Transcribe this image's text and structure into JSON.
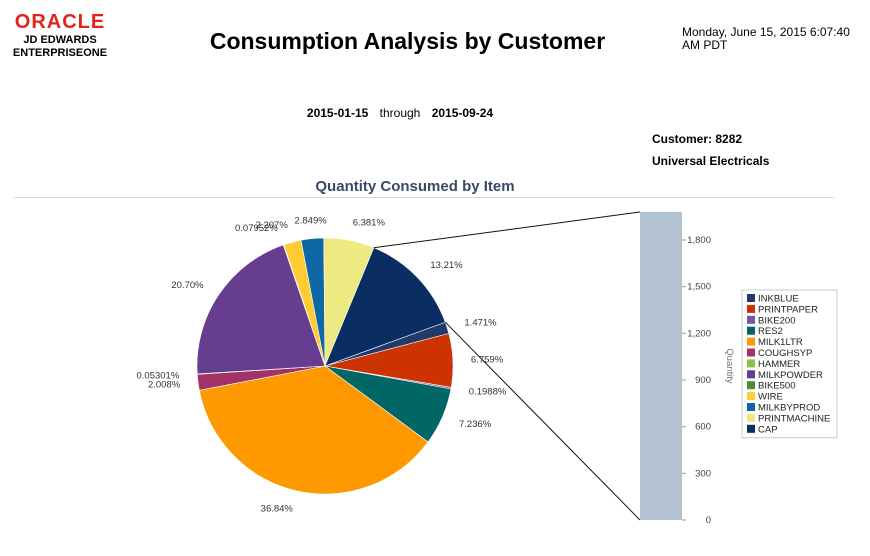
{
  "brand": {
    "oracle": "ORACLE",
    "line1": "JD EDWARDS",
    "line2": "ENTERPRISEONE",
    "logo_color": "#e3231b"
  },
  "report": {
    "title": "Consumption Analysis by Customer",
    "timestamp_line1": "Monday, June 15, 2015 6:07:40",
    "timestamp_line2": "AM PDT",
    "date_from": "2015-01-15",
    "through_label": "through",
    "date_to": "2015-09-24",
    "customer_label": "Customer:",
    "customer_number": "8282",
    "customer_name": "Universal Electricals"
  },
  "chart_data": {
    "type": "pie",
    "title": "Quantity Consumed by Item",
    "slices": [
      {
        "item": "INKBLUE",
        "percent": 1.471,
        "label": "1.471%",
        "color": "#1f3a6b"
      },
      {
        "item": "PRINTPAPER",
        "percent": 6.759,
        "label": "6.759%",
        "color": "#cc3300"
      },
      {
        "item": "BIKE200",
        "percent": 0.1988,
        "label": "0.1988%",
        "color": "#6a5aa8"
      },
      {
        "item": "RES2",
        "percent": 7.236,
        "label": "7.236%",
        "color": "#006666"
      },
      {
        "item": "MILK1LTR",
        "percent": 36.84,
        "label": "36.84%",
        "color": "#ff9900"
      },
      {
        "item": "COUGHSYP",
        "percent": 2.008,
        "label": "2.008%",
        "color": "#a33366"
      },
      {
        "item": "HAMMER",
        "percent": 0.05301,
        "label": "0.05301%",
        "color": "#8bc34a"
      },
      {
        "item": "MILKPOWDER",
        "percent": 20.7,
        "label": "20.70%",
        "color": "#663d8f"
      },
      {
        "item": "BIKE500",
        "percent": 0.07952,
        "label": "0.07952%",
        "color": "#4d8a3a"
      },
      {
        "item": "WIRE",
        "percent": 2.207,
        "label": "2.207%",
        "color": "#ffcc33"
      },
      {
        "item": "MILKBYPROD",
        "percent": 2.849,
        "label": "2.849%",
        "color": "#0f67a4"
      },
      {
        "item": "PRINTMACHINE",
        "percent": 6.381,
        "label": "6.381%",
        "color": "#eeea82"
      },
      {
        "item": "CAP",
        "percent": 13.21,
        "label": "13.21%",
        "color": "#0a2d62"
      }
    ],
    "exploded_bar": {
      "ylabel": "Quantity",
      "ylim": [
        0,
        1980
      ],
      "ticks": [
        0,
        300,
        600,
        900,
        1200,
        1500,
        1800
      ],
      "tick_labels": [
        "0",
        "300",
        "600",
        "900",
        "1,200",
        "1,500",
        "1,800"
      ],
      "bar_color": "#b3c2d1"
    },
    "legend_position": "right"
  }
}
